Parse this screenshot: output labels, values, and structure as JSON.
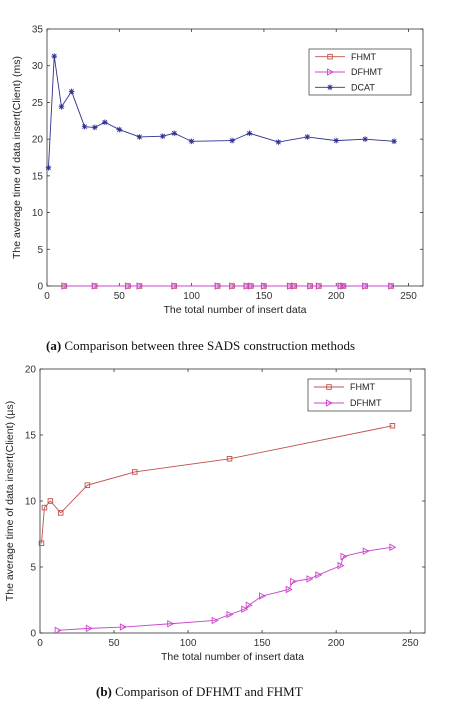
{
  "chart_data": [
    {
      "type": "line",
      "xlabel": "The total number of insert data",
      "ylabel": "The average time of data insert(Client) (ms)",
      "xlim": [
        0,
        260
      ],
      "ylim": [
        0,
        35
      ],
      "xticks": [
        0,
        50,
        100,
        150,
        200,
        250
      ],
      "yticks": [
        0,
        5,
        10,
        15,
        20,
        25,
        30,
        35
      ],
      "legend_position": "top-right",
      "grid": false,
      "series": [
        {
          "name": "FHMT",
          "color": "#c0504d",
          "marker": "square",
          "x": [
            12,
            33,
            56,
            64,
            88,
            118,
            128,
            138,
            141,
            150,
            168,
            171,
            182,
            188,
            203,
            205,
            220,
            238
          ],
          "y": [
            0,
            0,
            0,
            0,
            0,
            0,
            0,
            0,
            0,
            0,
            0,
            0,
            0,
            0,
            0,
            0,
            0,
            0
          ]
        },
        {
          "name": "DFHMT",
          "color": "#cc44cc",
          "marker": "triangle-right",
          "x": [
            12,
            33,
            56,
            64,
            88,
            118,
            128,
            138,
            141,
            150,
            168,
            171,
            182,
            188,
            203,
            205,
            220,
            238
          ],
          "y": [
            0,
            0,
            0,
            0,
            0,
            0,
            0,
            0,
            0,
            0,
            0,
            0,
            0,
            0,
            0,
            0,
            0,
            0
          ]
        },
        {
          "name": "DCAT",
          "color": "#2e3192",
          "marker": "star",
          "x": [
            1,
            5,
            10,
            17,
            26,
            33,
            40,
            50,
            64,
            80,
            88,
            100,
            128,
            140,
            160,
            180,
            200,
            220,
            240
          ],
          "y": [
            16.1,
            31.3,
            24.4,
            26.5,
            21.7,
            21.6,
            22.3,
            21.3,
            20.3,
            20.4,
            20.8,
            19.7,
            19.8,
            20.8,
            19.6,
            20.3,
            19.8,
            20.0,
            19.7
          ]
        }
      ],
      "caption_label": "(a)",
      "caption_text": " Comparison between three SADS construction methods"
    },
    {
      "type": "line",
      "xlabel": "The total number of insert data",
      "ylabel": "The average time of data insert(Client) (µs)",
      "xlim": [
        0,
        260
      ],
      "ylim": [
        0,
        20
      ],
      "xticks": [
        0,
        50,
        100,
        150,
        200,
        250
      ],
      "yticks": [
        0,
        5,
        10,
        15,
        20
      ],
      "legend_position": "top-right",
      "grid": false,
      "series": [
        {
          "name": "FHMT",
          "color": "#c0504d",
          "marker": "square",
          "x": [
            1,
            3,
            7,
            14,
            32,
            64,
            128,
            238
          ],
          "y": [
            6.8,
            9.5,
            10.0,
            9.1,
            11.2,
            12.2,
            13.2,
            15.7
          ]
        },
        {
          "name": "DFHMT",
          "color": "#cc44cc",
          "marker": "triangle-right",
          "x": [
            12,
            33,
            56,
            88,
            118,
            128,
            138,
            141,
            150,
            168,
            171,
            182,
            188,
            203,
            205,
            220,
            238
          ],
          "y": [
            0.2,
            0.35,
            0.45,
            0.7,
            0.95,
            1.4,
            1.8,
            2.1,
            2.8,
            3.3,
            3.9,
            4.1,
            4.4,
            5.1,
            5.8,
            6.2,
            6.5
          ]
        }
      ],
      "caption_label": "(b)",
      "caption_text": " Comparison of DFHMT and FHMT"
    }
  ]
}
